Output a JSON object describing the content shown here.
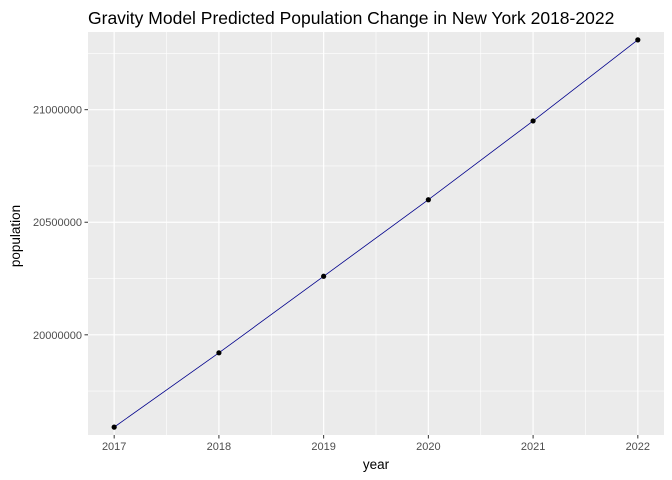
{
  "chart_data": {
    "type": "line",
    "title": "Gravity Model Predicted Population Change in New York 2018-2022",
    "xlabel": "year",
    "ylabel": "population",
    "x": [
      2017,
      2018,
      2019,
      2020,
      2021,
      2022
    ],
    "series": [
      {
        "values": [
          19590000,
          19920000,
          20260000,
          20600000,
          20950000,
          21310000
        ]
      }
    ],
    "x_ticks": [
      2017,
      2018,
      2019,
      2020,
      2021,
      2022
    ],
    "y_ticks": [
      20000000,
      20500000,
      21000000
    ],
    "y_tick_labels": [
      "20000000",
      "20500000",
      "21000000"
    ],
    "xlim": [
      2016.75,
      2022.25
    ],
    "ylim": [
      19555000,
      21345000
    ],
    "grid": true,
    "legend": "none",
    "colors": {
      "panel_background": "#ebebeb",
      "grid_major": "#ffffff",
      "line": "#00008b",
      "point": "#000000"
    }
  }
}
